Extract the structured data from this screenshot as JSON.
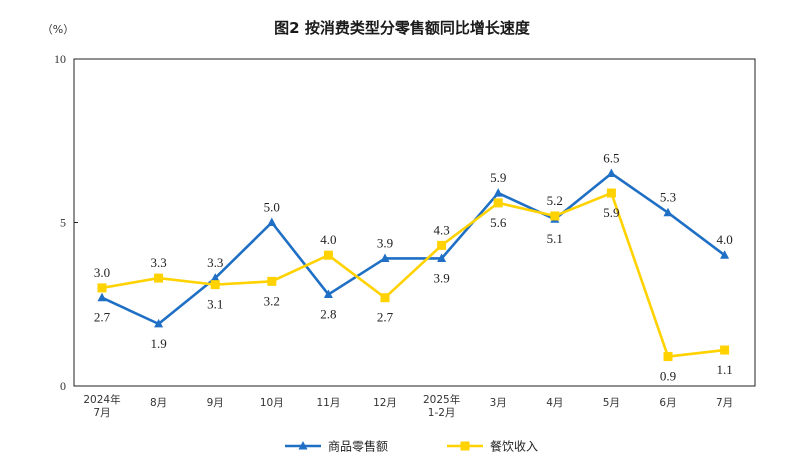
{
  "chart_data": {
    "type": "line",
    "title": "图2  按消费类型分零售额同比增长速度",
    "unit_label": "（%）",
    "categories": [
      [
        "2024年",
        "7月"
      ],
      [
        "8月"
      ],
      [
        "9月"
      ],
      [
        "10月"
      ],
      [
        "11月"
      ],
      [
        "12月"
      ],
      [
        "2025年",
        "1-2月"
      ],
      [
        "3月"
      ],
      [
        "4月"
      ],
      [
        "5月"
      ],
      [
        "6月"
      ],
      [
        "7月"
      ]
    ],
    "ylim": [
      0,
      10
    ],
    "yticks": [
      0,
      5,
      10
    ],
    "grid": false,
    "legend_position": "bottom",
    "series": [
      {
        "name": "商品零售额",
        "color": "#1F6FC5",
        "marker": "triangle",
        "values": [
          2.7,
          1.9,
          3.3,
          5.0,
          2.8,
          3.9,
          3.9,
          5.9,
          5.1,
          6.5,
          5.3,
          4.0
        ],
        "value_labels": [
          "2.7",
          "1.9",
          "3.3",
          "5.0",
          "2.8",
          "3.9",
          "3.9",
          "5.9",
          "5.1",
          "6.5",
          "5.3",
          "4.0"
        ],
        "label_side": [
          "below",
          "below",
          "above",
          "above",
          "below",
          "above",
          "below",
          "above",
          "below",
          "above",
          "above",
          "above"
        ]
      },
      {
        "name": "餐饮收入",
        "color": "#FFD200",
        "marker": "square",
        "values": [
          3.0,
          3.3,
          3.1,
          3.2,
          4.0,
          2.7,
          4.3,
          5.6,
          5.2,
          5.9,
          0.9,
          1.1
        ],
        "value_labels": [
          "3.0",
          "3.3",
          "3.1",
          "3.2",
          "4.0",
          "2.7",
          "4.3",
          "5.6",
          "5.2",
          "5.9",
          "0.9",
          "1.1"
        ],
        "label_side": [
          "above",
          "above",
          "below",
          "below",
          "above",
          "below",
          "above",
          "below",
          "above",
          "below",
          "below",
          "below"
        ]
      }
    ]
  }
}
